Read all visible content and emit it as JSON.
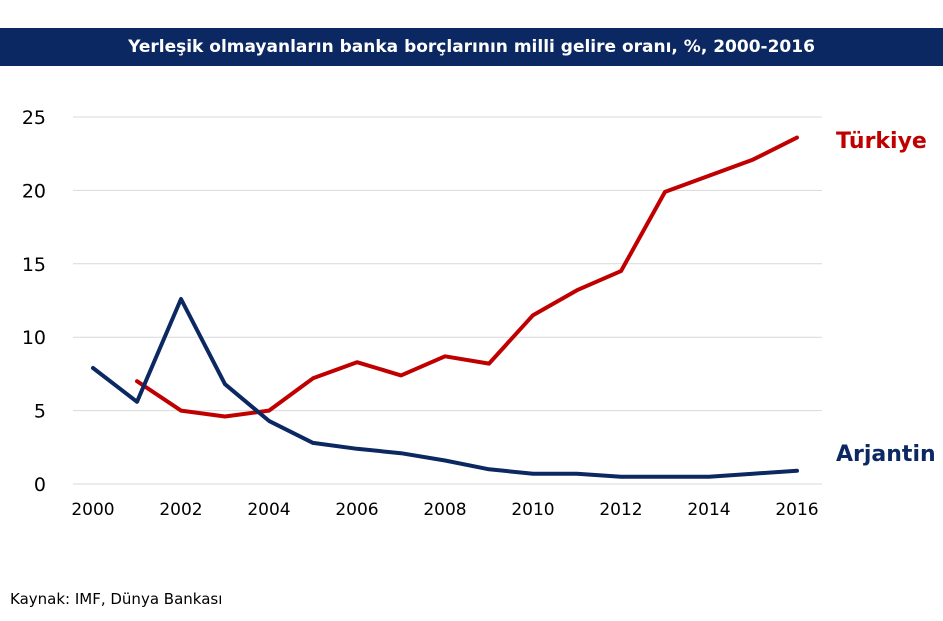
{
  "colors": {
    "header_bg": "#0b2862",
    "turkiye": "#c00000",
    "arjantin": "#0b2862",
    "grid": "#d9d9d9"
  },
  "chart_data": {
    "type": "line",
    "title": "Yerleşik olmayanların banka borçlarının milli gelire oranı, %, 2000-2016",
    "xlabel": "",
    "ylabel": "",
    "xlim": [
      2000,
      2016
    ],
    "ylim": [
      0,
      25
    ],
    "x_ticks": [
      "2000",
      "2002",
      "2004",
      "2006",
      "2008",
      "2010",
      "2012",
      "2014",
      "2016"
    ],
    "y_ticks": [
      "0",
      "5",
      "10",
      "15",
      "20",
      "25"
    ],
    "grid": true,
    "series": [
      {
        "name": "Türkiye",
        "color": "#c00000",
        "x": [
          2001,
          2002,
          2003,
          2004,
          2005,
          2006,
          2007,
          2008,
          2009,
          2010,
          2011,
          2012,
          2013,
          2014,
          2015,
          2016
        ],
        "values": [
          7.0,
          5.0,
          4.6,
          5.0,
          7.2,
          8.3,
          7.4,
          8.7,
          8.2,
          11.5,
          13.2,
          14.5,
          19.9,
          21.0,
          22.1,
          23.6
        ]
      },
      {
        "name": "Arjantin",
        "color": "#0b2862",
        "x": [
          2000,
          2001,
          2002,
          2003,
          2004,
          2005,
          2006,
          2007,
          2008,
          2009,
          2010,
          2011,
          2012,
          2013,
          2014,
          2015,
          2016
        ],
        "values": [
          7.9,
          5.6,
          12.6,
          6.8,
          4.3,
          2.8,
          2.4,
          2.1,
          1.6,
          1.0,
          0.7,
          0.7,
          0.5,
          0.5,
          0.5,
          0.7,
          0.9
        ]
      }
    ]
  },
  "source": "Kaynak: IMF, Dünya Bankası"
}
